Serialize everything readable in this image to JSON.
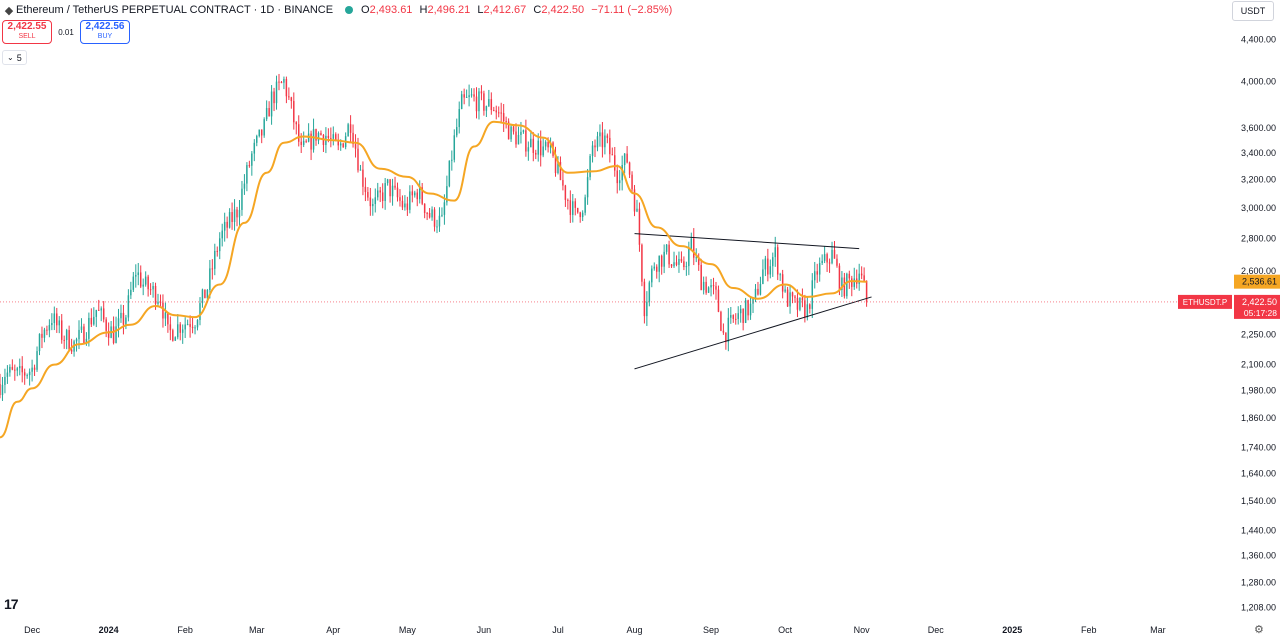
{
  "header": {
    "title": "Ethereum / TetherUS PERPETUAL CONTRACT · 1D · BINANCE",
    "ohlc": [
      {
        "k": "O",
        "v": "2,493.61"
      },
      {
        "k": "H",
        "v": "2,496.21"
      },
      {
        "k": "L",
        "v": "2,412.67"
      },
      {
        "k": "C",
        "v": "2,422.50"
      },
      {
        "k": "",
        "v": "−71.11 (−2.85%)"
      }
    ]
  },
  "trade": {
    "sell_price": "2,422.55",
    "sell_label": "SELL",
    "spread": "0.01",
    "buy_price": "2,422.56",
    "buy_label": "BUY"
  },
  "indicators_count": "5",
  "currency": "USDT",
  "colors": {
    "up": "#26a69a",
    "down": "#f23645",
    "ma": "#f5a623",
    "trend": "#131722"
  },
  "chart_data": {
    "type": "candlestick",
    "yscale": "log",
    "ylim": [
      1180,
      4580
    ],
    "x_range": [
      "2023-11-18",
      "2025-03-31"
    ],
    "y_ticks": [
      4400,
      4000,
      3600,
      3400,
      3200,
      3000,
      2800,
      2600,
      2400,
      2250,
      2100,
      1980,
      1860,
      1740,
      1640,
      1540,
      1440,
      1360,
      1280,
      1208
    ],
    "y_tick_labels": [
      "4,400.00",
      "4,000.00",
      "3,600.00",
      "3,400.00",
      "3,200.00",
      "3,000.00",
      "2,800.00",
      "2,600.00",
      "",
      "2,250.00",
      "2,100.00",
      "1,980.00",
      "1,860.00",
      "1,740.00",
      "1,640.00",
      "1,540.00",
      "1,440.00",
      "1,360.00",
      "1,280.00",
      "1,208.00"
    ],
    "x_ticks": [
      {
        "date": "2023-12-01",
        "label": "Dec",
        "bold": false
      },
      {
        "date": "2024-01-01",
        "label": "2024",
        "bold": true
      },
      {
        "date": "2024-02-01",
        "label": "Feb",
        "bold": false
      },
      {
        "date": "2024-03-01",
        "label": "Mar",
        "bold": false
      },
      {
        "date": "2024-04-01",
        "label": "Apr",
        "bold": false
      },
      {
        "date": "2024-05-01",
        "label": "May",
        "bold": false
      },
      {
        "date": "2024-06-01",
        "label": "Jun",
        "bold": false
      },
      {
        "date": "2024-07-01",
        "label": "Jul",
        "bold": false
      },
      {
        "date": "2024-08-01",
        "label": "Aug",
        "bold": false
      },
      {
        "date": "2024-09-01",
        "label": "Sep",
        "bold": false
      },
      {
        "date": "2024-10-01",
        "label": "Oct",
        "bold": false
      },
      {
        "date": "2024-11-01",
        "label": "Nov",
        "bold": false
      },
      {
        "date": "2024-12-01",
        "label": "Dec",
        "bold": false
      },
      {
        "date": "2025-01-01",
        "label": "2025",
        "bold": true
      },
      {
        "date": "2025-02-01",
        "label": "Feb",
        "bold": false
      },
      {
        "date": "2025-03-01",
        "label": "Mar",
        "bold": false
      }
    ],
    "close_path": [
      [
        "2023-11-18",
        2010
      ],
      [
        "2023-11-20",
        2060
      ],
      [
        "2023-11-26",
        2050
      ],
      [
        "2023-12-01",
        2080
      ],
      [
        "2023-12-05",
        2250
      ],
      [
        "2023-12-09",
        2340
      ],
      [
        "2023-12-13",
        2250
      ],
      [
        "2023-12-18",
        2200
      ],
      [
        "2023-12-22",
        2260
      ],
      [
        "2023-12-27",
        2380
      ],
      [
        "2023-12-31",
        2300
      ],
      [
        "2024-01-03",
        2250
      ],
      [
        "2024-01-08",
        2350
      ],
      [
        "2024-01-12",
        2600
      ],
      [
        "2024-01-15",
        2520
      ],
      [
        "2024-01-22",
        2450
      ],
      [
        "2024-01-25",
        2250
      ],
      [
        "2024-01-30",
        2300
      ],
      [
        "2024-02-05",
        2330
      ],
      [
        "2024-02-10",
        2500
      ],
      [
        "2024-02-15",
        2800
      ],
      [
        "2024-02-22",
        2980
      ],
      [
        "2024-02-28",
        3380
      ],
      [
        "2024-03-04",
        3600
      ],
      [
        "2024-03-07",
        3850
      ],
      [
        "2024-03-12",
        4000
      ],
      [
        "2024-03-15",
        3750
      ],
      [
        "2024-03-19",
        3400
      ],
      [
        "2024-03-25",
        3550
      ],
      [
        "2024-03-29",
        3540
      ],
      [
        "2024-04-03",
        3420
      ],
      [
        "2024-04-08",
        3650
      ],
      [
        "2024-04-12",
        3250
      ],
      [
        "2024-04-17",
        3000
      ],
      [
        "2024-04-23",
        3150
      ],
      [
        "2024-04-30",
        3000
      ],
      [
        "2024-05-05",
        3120
      ],
      [
        "2024-05-10",
        2950
      ],
      [
        "2024-05-15",
        2900
      ],
      [
        "2024-05-20",
        3500
      ],
      [
        "2024-05-23",
        3800
      ],
      [
        "2024-05-27",
        3850
      ],
      [
        "2024-06-01",
        3800
      ],
      [
        "2024-06-05",
        3780
      ],
      [
        "2024-06-08",
        3700
      ],
      [
        "2024-06-12",
        3550
      ],
      [
        "2024-06-17",
        3500
      ],
      [
        "2024-06-23",
        3450
      ],
      [
        "2024-06-28",
        3400
      ],
      [
        "2024-07-04",
        3100
      ],
      [
        "2024-07-08",
        2950
      ],
      [
        "2024-07-12",
        3050
      ],
      [
        "2024-07-15",
        3450
      ],
      [
        "2024-07-20",
        3500
      ],
      [
        "2024-07-25",
        3250
      ],
      [
        "2024-07-29",
        3350
      ],
      [
        "2024-08-02",
        2950
      ],
      [
        "2024-08-05",
        2400
      ],
      [
        "2024-08-09",
        2650
      ],
      [
        "2024-08-14",
        2700
      ],
      [
        "2024-08-20",
        2600
      ],
      [
        "2024-08-24",
        2750
      ],
      [
        "2024-08-28",
        2550
      ],
      [
        "2024-09-03",
        2450
      ],
      [
        "2024-09-06",
        2250
      ],
      [
        "2024-09-12",
        2350
      ],
      [
        "2024-09-18",
        2400
      ],
      [
        "2024-09-22",
        2600
      ],
      [
        "2024-09-27",
        2700
      ],
      [
        "2024-10-01",
        2450
      ],
      [
        "2024-10-05",
        2400
      ],
      [
        "2024-10-10",
        2380
      ],
      [
        "2024-10-14",
        2600
      ],
      [
        "2024-10-20",
        2700
      ],
      [
        "2024-10-24",
        2500
      ],
      [
        "2024-10-28",
        2550
      ],
      [
        "2024-10-31",
        2600
      ],
      [
        "2024-11-02",
        2493
      ],
      [
        "2024-11-03",
        2422
      ]
    ],
    "ma_path": [
      [
        "2023-11-18",
        1780
      ],
      [
        "2023-11-25",
        1930
      ],
      [
        "2023-12-01",
        1990
      ],
      [
        "2023-12-10",
        2100
      ],
      [
        "2023-12-20",
        2200
      ],
      [
        "2024-01-01",
        2260
      ],
      [
        "2024-01-10",
        2300
      ],
      [
        "2024-01-20",
        2400
      ],
      [
        "2024-01-28",
        2350
      ],
      [
        "2024-02-05",
        2340
      ],
      [
        "2024-02-15",
        2520
      ],
      [
        "2024-02-25",
        2900
      ],
      [
        "2024-03-05",
        3250
      ],
      [
        "2024-03-12",
        3480
      ],
      [
        "2024-03-20",
        3530
      ],
      [
        "2024-04-01",
        3500
      ],
      [
        "2024-04-10",
        3480
      ],
      [
        "2024-04-20",
        3280
      ],
      [
        "2024-05-01",
        3220
      ],
      [
        "2024-05-10",
        3100
      ],
      [
        "2024-05-20",
        3050
      ],
      [
        "2024-05-28",
        3450
      ],
      [
        "2024-06-05",
        3650
      ],
      [
        "2024-06-15",
        3620
      ],
      [
        "2024-06-25",
        3520
      ],
      [
        "2024-07-05",
        3250
      ],
      [
        "2024-07-15",
        3260
      ],
      [
        "2024-07-25",
        3300
      ],
      [
        "2024-08-01",
        3100
      ],
      [
        "2024-08-10",
        2870
      ],
      [
        "2024-08-20",
        2750
      ],
      [
        "2024-09-01",
        2640
      ],
      [
        "2024-09-10",
        2500
      ],
      [
        "2024-09-20",
        2440
      ],
      [
        "2024-10-01",
        2520
      ],
      [
        "2024-10-10",
        2450
      ],
      [
        "2024-10-20",
        2470
      ],
      [
        "2024-10-28",
        2540
      ],
      [
        "2024-11-03",
        2536
      ]
    ],
    "trendlines": [
      {
        "from": [
          "2024-08-01",
          2830
        ],
        "to": [
          "2024-10-31",
          2735
        ]
      },
      {
        "from": [
          "2024-08-01",
          2080
        ],
        "to": [
          "2024-11-05",
          2450
        ]
      }
    ],
    "ma_label": "2,536.61",
    "ma_value": 2536.61,
    "price_label": "2,422.50",
    "price_value": 2422.5,
    "price_countdown": "05:17:28",
    "symbol_label": "ETHUSDT.P"
  }
}
